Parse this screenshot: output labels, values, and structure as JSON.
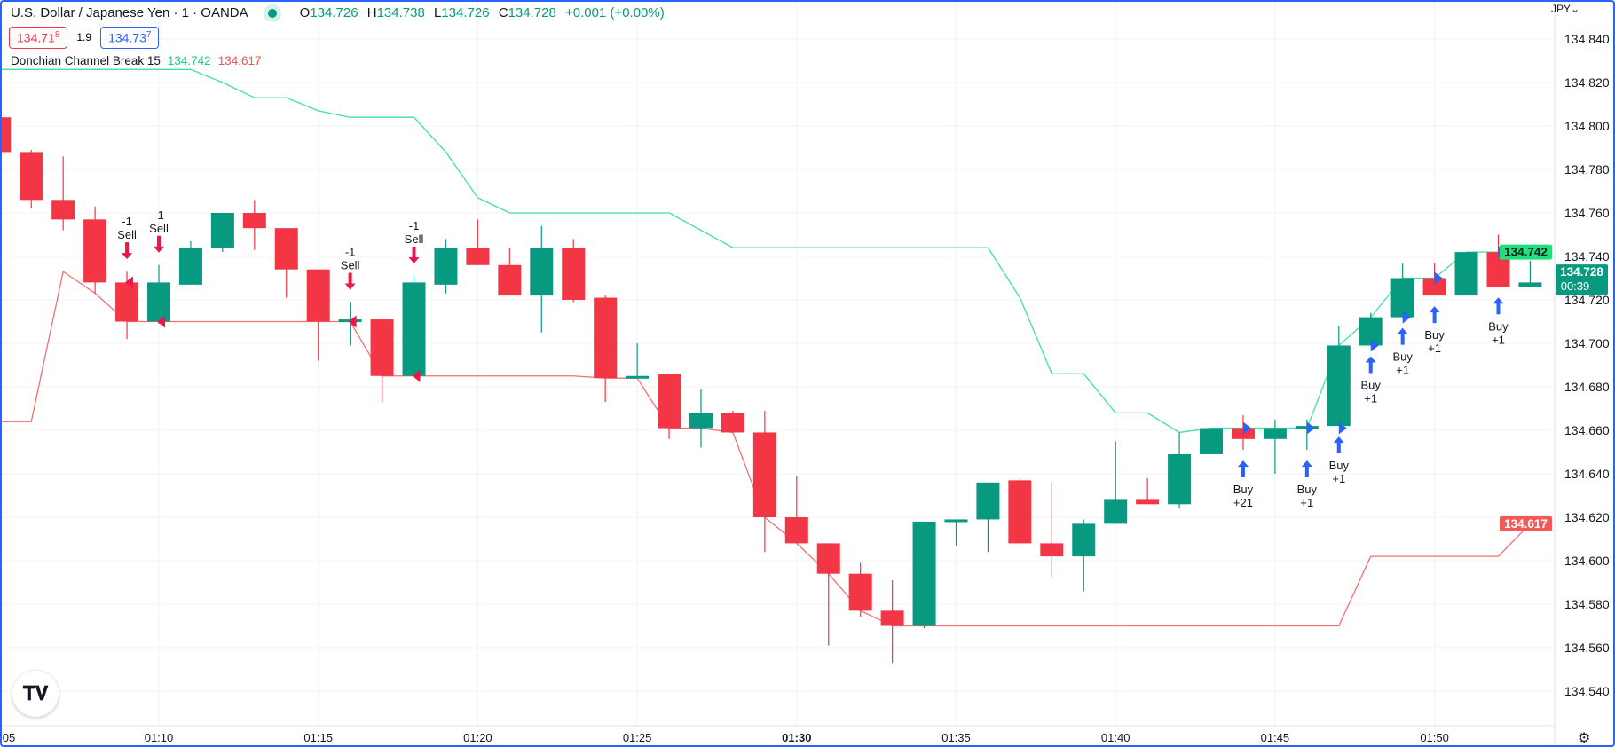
{
  "header": {
    "symbol": "U.S. Dollar / Japanese Yen · 1 · OANDA",
    "o_label": "O",
    "o": "134.726",
    "h_label": "H",
    "h": "134.738",
    "l_label": "L",
    "l": "134.726",
    "c_label": "C",
    "c": "134.728",
    "change": "+0.001 (+0.00%)"
  },
  "bidask": {
    "sell_main": "134.71",
    "sell_sup": "8",
    "spread": "1.9",
    "buy_main": "134.73",
    "buy_sup": "7"
  },
  "indicator": {
    "name": "Donchian Channel Break 15",
    "upper": "134.742",
    "lower": "134.617"
  },
  "price_axis": {
    "currency": "JPY",
    "ticks": [
      "134.840",
      "134.820",
      "134.800",
      "134.780",
      "134.760",
      "134.740",
      "134.720",
      "134.700",
      "134.680",
      "134.660",
      "134.640",
      "134.620",
      "134.600",
      "134.580",
      "134.560",
      "134.540"
    ],
    "upper_label": "134.742",
    "last_label": "134.728",
    "countdown": "00:39",
    "lower_label": "134.617"
  },
  "time_axis": {
    "ticks": [
      {
        "m": 5,
        "t": "05"
      },
      {
        "m": 10,
        "t": "01:10"
      },
      {
        "m": 15,
        "t": "01:15"
      },
      {
        "m": 20,
        "t": "01:20"
      },
      {
        "m": 25,
        "t": "01:25"
      },
      {
        "m": 30,
        "t": "01:30",
        "bold": true
      },
      {
        "m": 35,
        "t": "01:35"
      },
      {
        "m": 40,
        "t": "01:40"
      },
      {
        "m": 45,
        "t": "01:45"
      },
      {
        "m": 50,
        "t": "01:50"
      }
    ]
  },
  "logo": "TV",
  "colors": {
    "up": "#089981",
    "down": "#f23645",
    "upper": "#3ee0a4",
    "lower": "#f07070",
    "buy": "#2962ff",
    "sell": "#f0144a"
  },
  "chart_data": {
    "type": "candlestick",
    "ylim": [
      134.53,
      134.85
    ],
    "start_minute": 5,
    "ohlc": [
      [
        134.804,
        134.806,
        134.786,
        134.788
      ],
      [
        134.788,
        134.789,
        134.762,
        134.766
      ],
      [
        134.766,
        134.786,
        134.752,
        134.757
      ],
      [
        134.757,
        134.763,
        134.723,
        134.728
      ],
      [
        134.728,
        134.733,
        134.702,
        134.71
      ],
      [
        134.71,
        134.736,
        134.709,
        134.728
      ],
      [
        134.727,
        134.747,
        134.727,
        134.744
      ],
      [
        134.744,
        134.76,
        134.742,
        134.76
      ],
      [
        134.76,
        134.766,
        134.743,
        134.753
      ],
      [
        134.753,
        134.753,
        134.721,
        134.734
      ],
      [
        134.734,
        134.734,
        134.692,
        134.71
      ],
      [
        134.71,
        134.719,
        134.699,
        134.711
      ],
      [
        134.711,
        134.711,
        134.673,
        134.685
      ],
      [
        134.685,
        134.731,
        134.685,
        134.728
      ],
      [
        134.727,
        134.748,
        134.723,
        134.744
      ],
      [
        134.744,
        134.757,
        134.736,
        134.736
      ],
      [
        134.736,
        134.744,
        134.722,
        134.722
      ],
      [
        134.722,
        134.754,
        134.705,
        134.744
      ],
      [
        134.744,
        134.748,
        134.719,
        134.72
      ],
      [
        134.721,
        134.722,
        134.673,
        134.684
      ],
      [
        134.684,
        134.7,
        134.684,
        134.685
      ],
      [
        134.686,
        134.686,
        134.656,
        134.661
      ],
      [
        134.661,
        134.679,
        134.652,
        134.668
      ],
      [
        134.668,
        134.669,
        134.659,
        134.659
      ],
      [
        134.659,
        134.669,
        134.604,
        134.62
      ],
      [
        134.62,
        134.639,
        134.608,
        134.608
      ],
      [
        134.608,
        134.608,
        134.561,
        134.594
      ],
      [
        134.594,
        134.599,
        134.574,
        134.577
      ],
      [
        134.577,
        134.591,
        134.553,
        134.57
      ],
      [
        134.57,
        134.618,
        134.569,
        134.618
      ],
      [
        134.618,
        134.619,
        134.607,
        134.619
      ],
      [
        134.619,
        134.636,
        134.604,
        134.636
      ],
      [
        134.637,
        134.638,
        134.608,
        134.608
      ],
      [
        134.608,
        134.636,
        134.592,
        134.602
      ],
      [
        134.602,
        134.619,
        134.586,
        134.617
      ],
      [
        134.617,
        134.655,
        134.617,
        134.628
      ],
      [
        134.628,
        134.638,
        134.626,
        134.626
      ],
      [
        134.626,
        134.659,
        134.624,
        134.649
      ],
      [
        134.649,
        134.661,
        134.649,
        134.661
      ],
      [
        134.661,
        134.667,
        134.651,
        134.656
      ],
      [
        134.656,
        134.665,
        134.64,
        134.661
      ],
      [
        134.661,
        134.665,
        134.651,
        134.662
      ],
      [
        134.662,
        134.708,
        134.662,
        134.699
      ],
      [
        134.699,
        134.714,
        134.699,
        134.712
      ],
      [
        134.712,
        134.737,
        134.712,
        134.73
      ],
      [
        134.73,
        134.737,
        134.722,
        134.722
      ],
      [
        134.722,
        134.742,
        134.722,
        134.742
      ],
      [
        134.742,
        134.75,
        134.726,
        134.726
      ],
      [
        134.726,
        134.738,
        134.726,
        134.728
      ]
    ],
    "upper_start_minute": 4,
    "upper": [
      134.826,
      134.826,
      134.826,
      134.826,
      134.826,
      134.826,
      134.826,
      134.826,
      134.82,
      134.813,
      134.813,
      134.807,
      134.804,
      134.804,
      134.804,
      134.788,
      134.767,
      134.76,
      134.76,
      134.76,
      134.76,
      134.76,
      134.76,
      134.752,
      134.744,
      134.744,
      134.744,
      134.744,
      134.744,
      134.744,
      134.744,
      134.744,
      134.744,
      134.721,
      134.686,
      134.686,
      134.668,
      134.668,
      134.659,
      134.661,
      134.661,
      134.661,
      134.661,
      134.699,
      134.712,
      134.73,
      134.73,
      134.742,
      134.742,
      134.742
    ],
    "lower": [
      134.664,
      134.664,
      134.664,
      134.733,
      134.723,
      134.71,
      134.71,
      134.71,
      134.71,
      134.71,
      134.71,
      134.71,
      134.71,
      134.685,
      134.685,
      134.685,
      134.685,
      134.685,
      134.685,
      134.685,
      134.684,
      134.684,
      134.661,
      134.661,
      134.659,
      134.62,
      134.608,
      134.594,
      134.577,
      134.57,
      134.57,
      134.57,
      134.57,
      134.57,
      134.57,
      134.57,
      134.57,
      134.57,
      134.57,
      134.57,
      134.57,
      134.57,
      134.57,
      134.57,
      134.602,
      134.602,
      134.602,
      134.602,
      134.602,
      134.617
    ],
    "signals": [
      {
        "m": 9,
        "side": "sell",
        "qty": "-1",
        "label": "Sell",
        "price": 134.728
      },
      {
        "m": 10,
        "side": "sell",
        "qty": "-1",
        "label": "Sell",
        "price": 134.71
      },
      {
        "m": 16,
        "side": "sell",
        "qty": "-1",
        "label": "Sell",
        "price": 134.71
      },
      {
        "m": 18,
        "side": "sell",
        "qty": "-1",
        "label": "Sell",
        "price": 134.685
      },
      {
        "m": 44,
        "side": "buy",
        "qty": "+21",
        "label": "Buy",
        "price": 134.661
      },
      {
        "m": 46,
        "side": "buy",
        "qty": "+1",
        "label": "Buy",
        "price": 134.661
      },
      {
        "m": 47,
        "side": "buy",
        "qty": "+1",
        "label": "Buy",
        "price": 134.661
      },
      {
        "m": 48,
        "side": "buy",
        "qty": "+1",
        "label": "Buy",
        "price": 134.699
      },
      {
        "m": 49,
        "side": "buy",
        "qty": "+1",
        "label": "Buy",
        "price": 134.712
      },
      {
        "m": 50,
        "side": "buy",
        "qty": "+1",
        "label": "Buy",
        "price": 134.73
      },
      {
        "m": 52,
        "side": "buy",
        "qty": "+1",
        "label": "Buy",
        "price": 134.742
      }
    ]
  }
}
